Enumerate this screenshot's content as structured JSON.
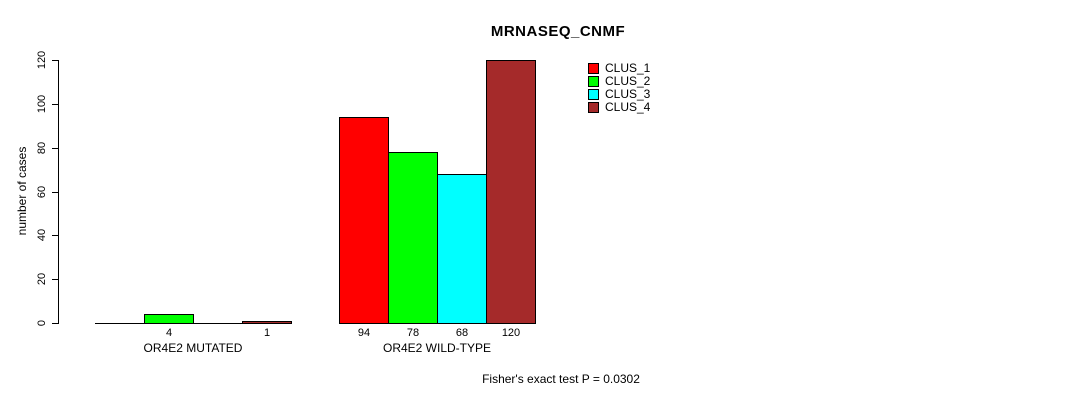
{
  "chart_data": {
    "type": "bar",
    "title": "MRNASEQ_CNMF",
    "ylabel": "number of cases",
    "xlabel": "",
    "ylim": [
      0,
      120
    ],
    "yticks": [
      0,
      20,
      40,
      60,
      80,
      100,
      120
    ],
    "categories": [
      "OR4E2 MUTATED",
      "OR4E2 WILD-TYPE"
    ],
    "series": [
      {
        "name": "CLUS_1",
        "color": "#FF0000",
        "values": [
          0,
          94
        ]
      },
      {
        "name": "CLUS_2",
        "color": "#00FF00",
        "values": [
          4,
          78
        ]
      },
      {
        "name": "CLUS_3",
        "color": "#00FFFF",
        "values": [
          0,
          68
        ]
      },
      {
        "name": "CLUS_4",
        "color": "#A52A2A",
        "values": [
          1,
          120
        ]
      }
    ],
    "bar_value_labels": {
      "OR4E2 MUTATED": [
        null,
        4,
        null,
        1
      ],
      "OR4E2 WILD-TYPE": [
        94,
        78,
        68,
        120
      ]
    },
    "legend_position": "top-right",
    "grid": false,
    "annotation": "Fisher's exact test P = 0.0302",
    "axis_color": "#000000",
    "bar_border_color": "#000000"
  }
}
